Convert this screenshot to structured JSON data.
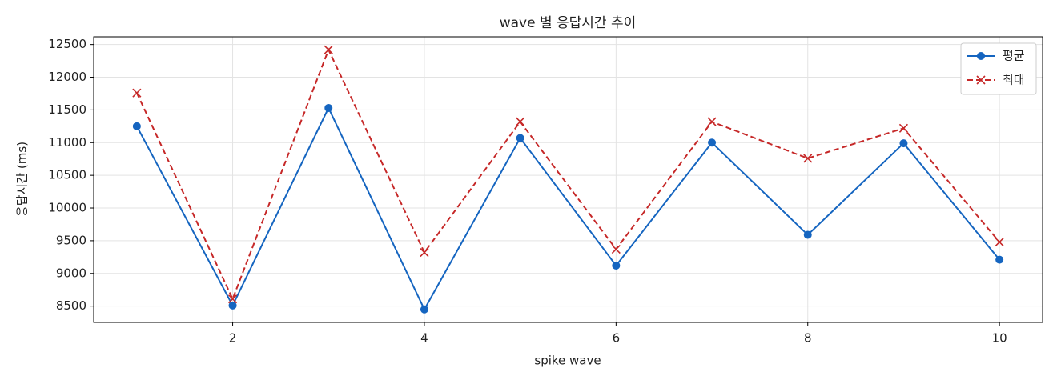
{
  "chart_data": {
    "type": "line",
    "title": "wave 별 응답시간 추이",
    "x_label": "spike wave",
    "y_label": "응답시간 (ms)",
    "x": [
      1,
      2,
      3,
      4,
      5,
      6,
      7,
      8,
      9,
      10
    ],
    "series": [
      {
        "name": "평균",
        "color": "#1565c0",
        "marker": "o",
        "dash": false,
        "values": [
          11250,
          8510,
          11530,
          8450,
          11070,
          9120,
          11000,
          9590,
          10990,
          9210
        ]
      },
      {
        "name": "최대",
        "color": "#c62828",
        "marker": "x",
        "dash": true,
        "values": [
          11760,
          8610,
          12420,
          9320,
          11320,
          9370,
          11320,
          10760,
          11220,
          9480
        ]
      }
    ],
    "xlim": [
      0.55,
      10.45
    ],
    "ylim": [
      8251,
      12618
    ],
    "xticks": [
      2,
      4,
      6,
      8,
      10
    ],
    "yticks": [
      8500,
      9000,
      9500,
      10000,
      10500,
      11000,
      11500,
      12000,
      12500
    ],
    "grid": true,
    "legend": "upper right"
  }
}
